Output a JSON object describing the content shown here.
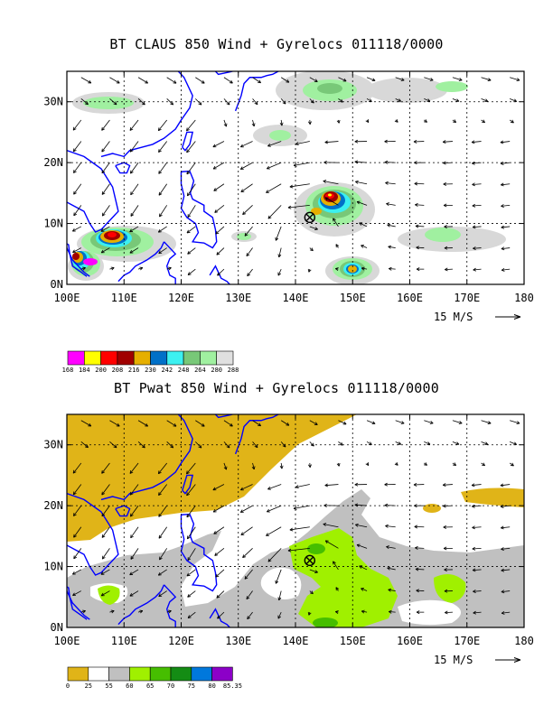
{
  "panels": [
    {
      "title": "BT CLAUS 850 Wind + Gyrelocs 011118/0000",
      "x_ticks": [
        "100E",
        "110E",
        "120E",
        "130E",
        "140E",
        "150E",
        "160E",
        "170E",
        "180"
      ],
      "y_ticks": [
        "0N",
        "10N",
        "20N",
        "30N"
      ],
      "vector_ref": "15 M/S",
      "colorbar": {
        "labels": [
          "168",
          "184",
          "200",
          "208",
          "216",
          "230",
          "242",
          "248",
          "264",
          "280",
          "288"
        ],
        "colors": [
          "#ff00ff",
          "#ffff00",
          "#ff0000",
          "#a00000",
          "#e6af00",
          "#0070c8",
          "#3cf0f0",
          "#78c878",
          "#a0f0a0",
          "#e0e0e0"
        ]
      }
    },
    {
      "title": "BT Pwat 850 Wind + Gyrelocs 011118/0000",
      "x_ticks": [
        "100E",
        "110E",
        "120E",
        "130E",
        "140E",
        "150E",
        "160E",
        "170E",
        "180"
      ],
      "y_ticks": [
        "0N",
        "10N",
        "20N",
        "30N"
      ],
      "vector_ref": "15 M/S",
      "colorbar": {
        "labels": [
          "0",
          "25",
          "55",
          "60",
          "65",
          "70",
          "75",
          "80",
          "85.35"
        ],
        "colors": [
          "#e0b418",
          "#ffffff",
          "#c0c0c0",
          "#a0f000",
          "#46be00",
          "#148c14",
          "#0078dc",
          "#8c00c8"
        ]
      }
    }
  ],
  "gyre_location": {
    "lon": 142.5,
    "lat": 11.0
  },
  "colors": {
    "coast": "#0000ff",
    "grid": "#000000",
    "vector": "#000000"
  }
}
